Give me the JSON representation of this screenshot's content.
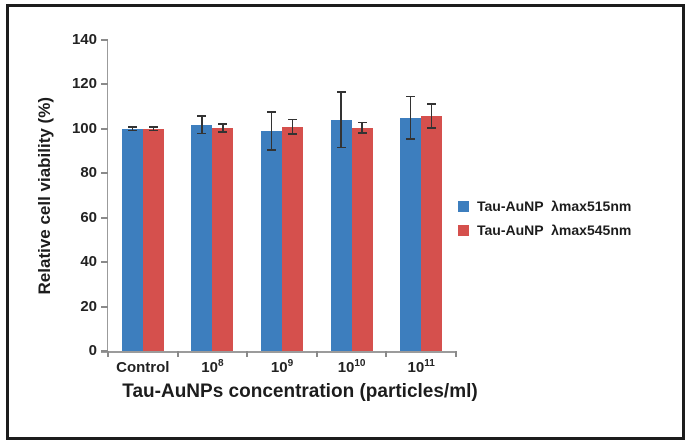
{
  "figure": {
    "background_color": "#ffffff",
    "border_color": "#1c1c1c"
  },
  "chart_data": {
    "type": "bar",
    "title": "",
    "xlabel": "Tau-AuNPs concentration (particles/ml)",
    "ylabel": "Relative cell viability (%)",
    "categories": [
      "Control",
      "10^8",
      "10^9",
      "10^10",
      "10^11"
    ],
    "series": [
      {
        "name": "Tau-AuNP  λmax515nm",
        "color": "#3D7EBE",
        "values": [
          100,
          101.8,
          99,
          104,
          105
        ],
        "errors": [
          0.8,
          4,
          8.5,
          12.5,
          9.5
        ]
      },
      {
        "name": "Tau-AuNP  λmax545nm",
        "color": "#D5504D",
        "values": [
          100,
          100.4,
          101,
          100.5,
          105.8
        ],
        "errors": [
          0.8,
          1.8,
          3.3,
          2.4,
          5.5
        ]
      }
    ],
    "ylim": [
      0,
      140
    ],
    "ytick_step": 20,
    "yticks": [
      0,
      20,
      40,
      60,
      80,
      100,
      120,
      140
    ],
    "grid": false,
    "legend_position": "right",
    "error_bar_color": "#333333",
    "axis_color": "#9b9b9b"
  }
}
